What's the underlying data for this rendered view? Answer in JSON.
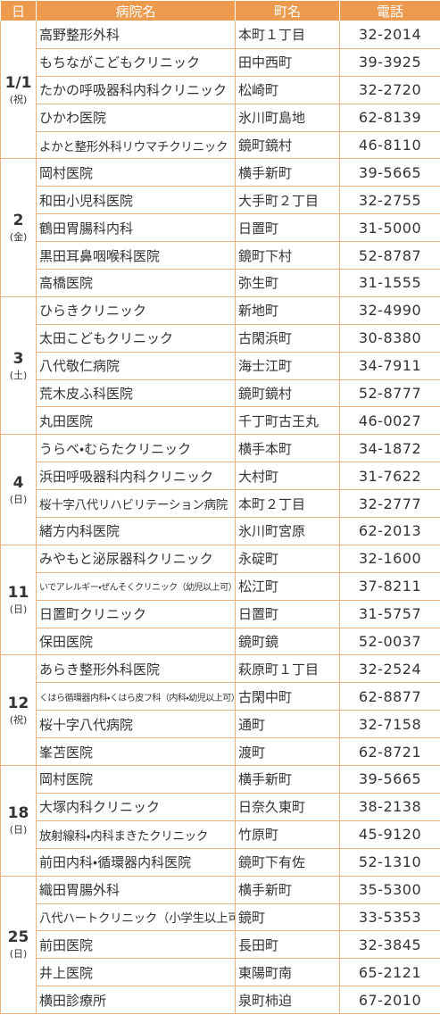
{
  "header": [
    "日",
    "病院名",
    "町名",
    "電話"
  ],
  "groups": [
    {
      "day": "1/1",
      "dow": "(祝)",
      "rows": [
        [
          "高野整形外科",
          "本町１丁目",
          "32-2014"
        ],
        [
          "もちながこどもクリニック",
          "田中西町",
          "39-3925"
        ],
        [
          "たかの呼吸器科内科クリニック",
          "松崎町",
          "32-2720"
        ],
        [
          "ひかわ医院",
          "氷川町島地",
          "62-8139"
        ],
        [
          "よかと整形外科リウマチクリニック",
          "鏡町鏡村",
          "46-8110"
        ]
      ]
    },
    {
      "day": "2",
      "dow": "(金)",
      "rows": [
        [
          "岡村医院",
          "横手新町",
          "39-5665"
        ],
        [
          "和田小児科医院",
          "大手町２丁目",
          "32-2755"
        ],
        [
          "鶴田胃腸科内科",
          "日置町",
          "31-5000"
        ],
        [
          "黒田耳鼻咽喉科医院",
          "鏡町下村",
          "52-8787"
        ],
        [
          "高橋医院",
          "弥生町",
          "31-1555"
        ]
      ]
    },
    {
      "day": "3",
      "dow": "(土)",
      "rows": [
        [
          "ひらきクリニック",
          "新地町",
          "32-4990"
        ],
        [
          "太田こどもクリニック",
          "古閑浜町",
          "30-8380"
        ],
        [
          "八代敬仁病院",
          "海士江町",
          "34-7911"
        ],
        [
          "荒木皮ふ科医院",
          "鏡町鏡村",
          "52-8777"
        ],
        [
          "丸田医院",
          "千丁町古王丸",
          "46-0027"
        ]
      ]
    },
    {
      "day": "4",
      "dow": "(日)",
      "rows": [
        [
          "うらべ・むらたクリニック",
          "横手本町",
          "34-1872"
        ],
        [
          "浜田呼吸器科内科クリニック",
          "大村町",
          "31-7622"
        ],
        [
          "桜十字八代リハビリテーション病院",
          "本町２丁目",
          "32-2777"
        ],
        [
          "緒方内科医院",
          "氷川町宮原",
          "62-2013"
        ]
      ]
    },
    {
      "day": "11",
      "dow": "(日)",
      "rows": [
        [
          "みやもと泌尿器科クリニック",
          "永碇町",
          "32-1600"
        ],
        [
          "いでアレルギー・ぜんそくクリニック（幼児以上可）",
          "松江町",
          "37-8211"
        ],
        [
          "日置町クリニック",
          "日置町",
          "31-5757"
        ],
        [
          "保田医院",
          "鏡町鏡",
          "52-0037"
        ]
      ]
    },
    {
      "day": "12",
      "dow": "(祝)",
      "rows": [
        [
          "あらき整形外科医院",
          "萩原町１丁目",
          "32-2524"
        ],
        [
          "くはら循環器内科・くはら皮フ科（内科・幼児以上可）",
          "古閑中町",
          "62-8877"
        ],
        [
          "桜十字八代病院",
          "通町",
          "32-7158"
        ],
        [
          "峯苫医院",
          "渡町",
          "62-8721"
        ]
      ]
    },
    {
      "day": "18",
      "dow": "(日)",
      "rows": [
        [
          "岡村医院",
          "横手新町",
          "39-5665"
        ],
        [
          "大塚内科クリニック",
          "日奈久東町",
          "38-2138"
        ],
        [
          "放射線科・内科まきたクリニック",
          "竹原町",
          "45-9120"
        ],
        [
          "前田内科・循環器内科医院",
          "鏡町下有佐",
          "52-1310"
        ]
      ]
    },
    {
      "day": "25",
      "dow": "(日)",
      "rows": [
        [
          "織田胃腸外科",
          "横手新町",
          "35-5300"
        ],
        [
          "八代ハートクリニック（小学生以上可）",
          "鏡町",
          "33-5353"
        ],
        [
          "前田医院",
          "長田町",
          "32-3845"
        ],
        [
          "井上医院",
          "東陽町南",
          "65-2121"
        ],
        [
          "横田診療所",
          "泉町柿迫",
          "67-2010"
        ]
      ]
    }
  ]
}
